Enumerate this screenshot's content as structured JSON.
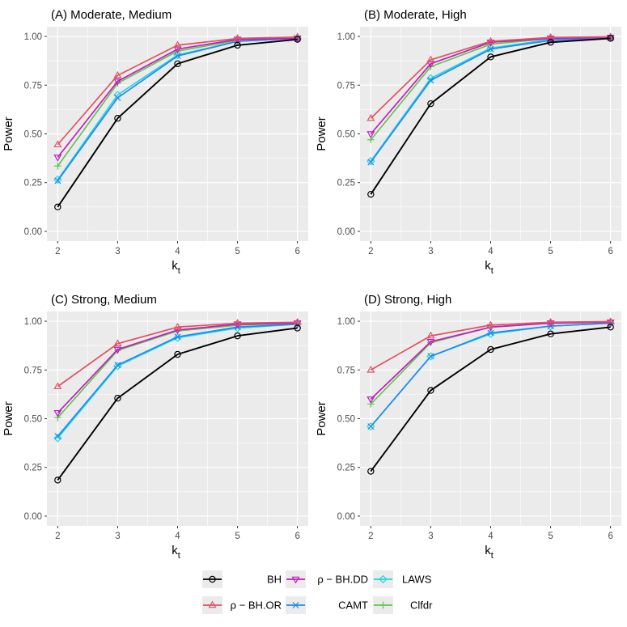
{
  "colors": {
    "panel_bg": "#ebebeb",
    "grid": "#ffffff",
    "BH": "#000000",
    "rho_BH_OR": "#e05263",
    "rho_BH_DD": "#c41bc4",
    "CAMT": "#1f8bf0",
    "LAWS": "#21d6e6",
    "Clfdr": "#5cc94a"
  },
  "legend": {
    "entries": [
      {
        "key": "BH",
        "label": "BH",
        "color": "#000000",
        "shape": "circle"
      },
      {
        "key": "rho_BH_OR",
        "label": "ρ − BH.OR",
        "color": "#e05263",
        "shape": "triangle-up"
      },
      {
        "key": "rho_BH_DD",
        "label": "ρ − BH.DD",
        "color": "#c41bc4",
        "shape": "triangle-down"
      },
      {
        "key": "CAMT",
        "label": "CAMT",
        "color": "#1f8bf0",
        "shape": "x"
      },
      {
        "key": "LAWS",
        "label": "LAWS",
        "color": "#21d6e6",
        "shape": "diamond"
      },
      {
        "key": "Clfdr",
        "label": "Clfdr",
        "color": "#5cc94a",
        "shape": "plus"
      }
    ]
  },
  "chart_data": [
    {
      "type": "line",
      "title": "(A) Moderate, Medium",
      "xlabel": "k",
      "xlabel_sub": "t",
      "ylabel": "Power",
      "x": [
        2,
        3,
        4,
        5,
        6
      ],
      "xlim": [
        1.82,
        6.18
      ],
      "ylim": [
        -0.05,
        1.05
      ],
      "yticks": [
        0.0,
        0.25,
        0.5,
        0.75,
        1.0
      ],
      "ytick_labels": [
        "0.00",
        "0.25",
        "0.50",
        "0.75",
        "1.00"
      ],
      "xtick_labels": [
        "2",
        "3",
        "4",
        "5",
        "6"
      ],
      "series": [
        {
          "name": "BH",
          "key": "BH",
          "values": [
            0.125,
            0.58,
            0.86,
            0.955,
            0.985
          ]
        },
        {
          "name": "ρ − BH.OR",
          "key": "rho_BH_OR",
          "values": [
            0.445,
            0.8,
            0.955,
            0.99,
            0.997
          ]
        },
        {
          "name": "ρ − BH.DD",
          "key": "rho_BH_DD",
          "values": [
            0.38,
            0.77,
            0.935,
            0.985,
            0.99
          ]
        },
        {
          "name": "CAMT",
          "key": "CAMT",
          "values": [
            0.26,
            0.685,
            0.9,
            0.975,
            0.99
          ]
        },
        {
          "name": "LAWS",
          "key": "LAWS",
          "values": [
            0.265,
            0.7,
            0.905,
            0.975,
            0.99
          ]
        },
        {
          "name": "Clfdr",
          "key": "Clfdr",
          "values": [
            0.335,
            0.76,
            0.925,
            0.98,
            0.99
          ]
        }
      ]
    },
    {
      "type": "line",
      "title": "(B) Moderate, High",
      "xlabel": "k",
      "xlabel_sub": "t",
      "ylabel": "Power",
      "x": [
        2,
        3,
        4,
        5,
        6
      ],
      "xlim": [
        1.82,
        6.18
      ],
      "ylim": [
        -0.05,
        1.05
      ],
      "yticks": [
        0.0,
        0.25,
        0.5,
        0.75,
        1.0
      ],
      "ytick_labels": [
        "0.00",
        "0.25",
        "0.50",
        "0.75",
        "1.00"
      ],
      "xtick_labels": [
        "2",
        "3",
        "4",
        "5",
        "6"
      ],
      "series": [
        {
          "name": "BH",
          "key": "BH",
          "values": [
            0.19,
            0.655,
            0.895,
            0.97,
            0.99
          ]
        },
        {
          "name": "ρ − BH.OR",
          "key": "rho_BH_OR",
          "values": [
            0.58,
            0.88,
            0.975,
            0.995,
            0.998
          ]
        },
        {
          "name": "ρ − BH.DD",
          "key": "rho_BH_DD",
          "values": [
            0.5,
            0.86,
            0.97,
            0.99,
            0.995
          ]
        },
        {
          "name": "CAMT",
          "key": "CAMT",
          "values": [
            0.355,
            0.775,
            0.935,
            0.98,
            0.993
          ]
        },
        {
          "name": "LAWS",
          "key": "LAWS",
          "values": [
            0.36,
            0.785,
            0.94,
            0.985,
            0.993
          ]
        },
        {
          "name": "Clfdr",
          "key": "Clfdr",
          "values": [
            0.47,
            0.845,
            0.96,
            0.99,
            0.995
          ]
        }
      ]
    },
    {
      "type": "line",
      "title": "(C) Strong, Medium",
      "xlabel": "k",
      "xlabel_sub": "t",
      "ylabel": "Power",
      "x": [
        2,
        3,
        4,
        5,
        6
      ],
      "xlim": [
        1.82,
        6.18
      ],
      "ylim": [
        -0.05,
        1.05
      ],
      "yticks": [
        0.0,
        0.25,
        0.5,
        0.75,
        1.0
      ],
      "ytick_labels": [
        "0.00",
        "0.25",
        "0.50",
        "0.75",
        "1.00"
      ],
      "xtick_labels": [
        "2",
        "3",
        "4",
        "5",
        "6"
      ],
      "series": [
        {
          "name": "BH",
          "key": "BH",
          "values": [
            0.185,
            0.605,
            0.83,
            0.925,
            0.965
          ]
        },
        {
          "name": "ρ − BH.OR",
          "key": "rho_BH_OR",
          "values": [
            0.665,
            0.885,
            0.97,
            0.99,
            0.995
          ]
        },
        {
          "name": "ρ − BH.DD",
          "key": "rho_BH_DD",
          "values": [
            0.53,
            0.855,
            0.955,
            0.985,
            0.99
          ]
        },
        {
          "name": "CAMT",
          "key": "CAMT",
          "values": [
            0.41,
            0.775,
            0.92,
            0.97,
            0.985
          ]
        },
        {
          "name": "LAWS",
          "key": "LAWS",
          "values": [
            0.4,
            0.77,
            0.915,
            0.965,
            0.985
          ]
        },
        {
          "name": "Clfdr",
          "key": "Clfdr",
          "values": [
            0.505,
            0.85,
            0.95,
            0.98,
            0.99
          ]
        }
      ]
    },
    {
      "type": "line",
      "title": "(D) Strong, High",
      "xlabel": "k",
      "xlabel_sub": "t",
      "ylabel": "Power",
      "x": [
        2,
        3,
        4,
        5,
        6
      ],
      "xlim": [
        1.82,
        6.18
      ],
      "ylim": [
        -0.05,
        1.05
      ],
      "yticks": [
        0.0,
        0.25,
        0.5,
        0.75,
        1.0
      ],
      "ytick_labels": [
        "0.00",
        "0.25",
        "0.50",
        "0.75",
        "1.00"
      ],
      "xtick_labels": [
        "2",
        "3",
        "4",
        "5",
        "6"
      ],
      "series": [
        {
          "name": "BH",
          "key": "BH",
          "values": [
            0.23,
            0.645,
            0.855,
            0.935,
            0.97
          ]
        },
        {
          "name": "ρ − BH.OR",
          "key": "rho_BH_OR",
          "values": [
            0.75,
            0.925,
            0.98,
            0.995,
            0.998
          ]
        },
        {
          "name": "ρ − BH.DD",
          "key": "rho_BH_DD",
          "values": [
            0.6,
            0.895,
            0.97,
            0.99,
            0.995
          ]
        },
        {
          "name": "CAMT",
          "key": "CAMT",
          "values": [
            0.46,
            0.82,
            0.94,
            0.975,
            0.99
          ]
        },
        {
          "name": "LAWS",
          "key": "LAWS",
          "values": [
            0.46,
            0.82,
            0.935,
            0.975,
            0.99
          ]
        },
        {
          "name": "Clfdr",
          "key": "Clfdr",
          "values": [
            0.575,
            0.89,
            0.97,
            0.99,
            0.995
          ]
        }
      ]
    }
  ]
}
